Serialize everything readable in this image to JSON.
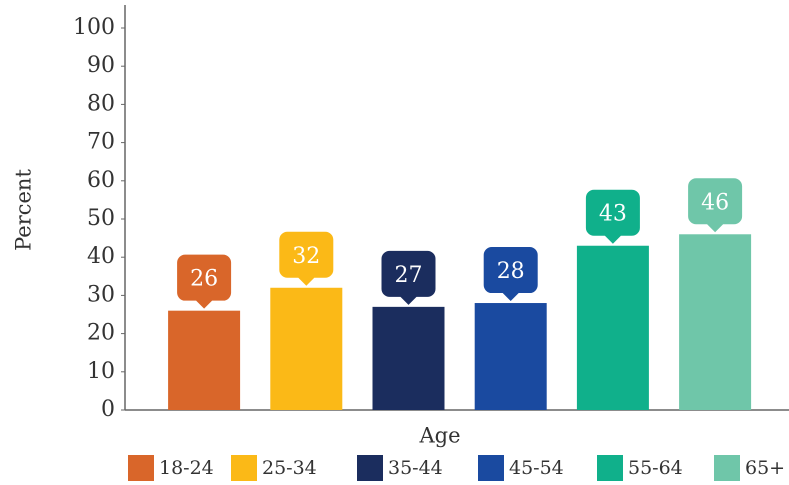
{
  "chart_data": {
    "type": "bar",
    "categories": [
      "18-24",
      "25-34",
      "35-44",
      "45-54",
      "55-64",
      "65+"
    ],
    "values": [
      26,
      32,
      27,
      28,
      43,
      46
    ],
    "colors": [
      "#d9662a",
      "#fbb917",
      "#1b2d5e",
      "#1a4aa0",
      "#10b08b",
      "#6fc6a9"
    ],
    "x_label": "Age",
    "y_label": "Percent",
    "ylim": [
      0,
      100
    ],
    "yticks": [
      0,
      10,
      20,
      30,
      40,
      50,
      60,
      70,
      80,
      90,
      100
    ],
    "legend": "bottom"
  }
}
